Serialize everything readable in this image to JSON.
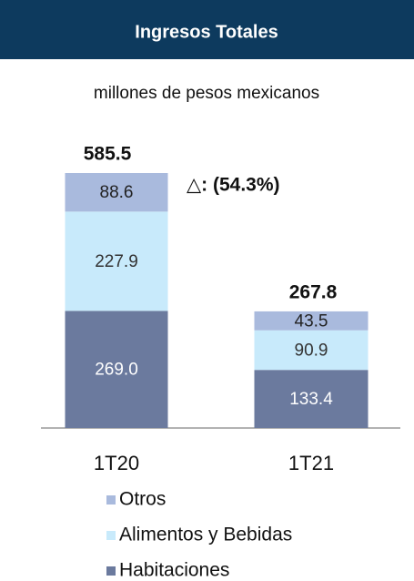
{
  "chart_data": {
    "type": "stacked_bar",
    "title": "Ingresos Totales",
    "subtitle": "millones de pesos mexicanos",
    "categories": [
      "1T20",
      "1T21"
    ],
    "series": [
      {
        "name": "Habitaciones",
        "color": "#6b7a9e",
        "label_color": "#ffffff",
        "values": [
          269.0,
          133.4
        ],
        "value_labels": [
          "269.0",
          "133.4"
        ]
      },
      {
        "name": "Alimentos y Bebidas",
        "color": "#c8eafb",
        "label_color": "#333333",
        "values": [
          227.9,
          90.9
        ],
        "value_labels": [
          "227.9",
          "90.9"
        ]
      },
      {
        "name": "Otros",
        "color": "#a9badd",
        "label_color": "#222222",
        "values": [
          88.6,
          43.5
        ],
        "value_labels": [
          "88.6",
          "43.5"
        ]
      }
    ],
    "totals": [
      585.5,
      267.8
    ],
    "annotation": "△: (54.3%)"
  }
}
